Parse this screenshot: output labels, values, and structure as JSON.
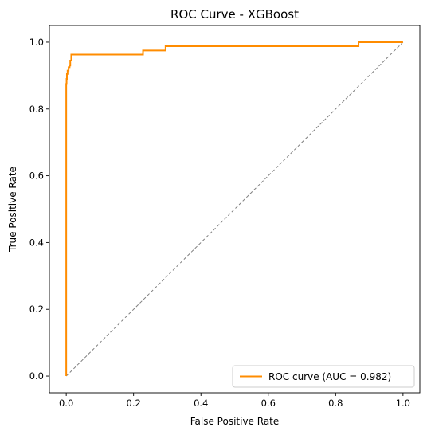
{
  "chart_data": {
    "type": "line",
    "title": "ROC Curve - XGBoost",
    "xlabel": "False Positive Rate",
    "ylabel": "True Positive Rate",
    "xlim": [
      -0.05,
      1.05
    ],
    "ylim": [
      -0.05,
      1.05
    ],
    "xticks": [
      0.0,
      0.2,
      0.4,
      0.6,
      0.8,
      1.0
    ],
    "xtick_labels": [
      "0.0",
      "0.2",
      "0.4",
      "0.6",
      "0.8",
      "1.0"
    ],
    "yticks": [
      0.0,
      0.2,
      0.4,
      0.6,
      0.8,
      1.0
    ],
    "ytick_labels": [
      "0.0",
      "0.2",
      "0.4",
      "0.6",
      "0.8",
      "1.0"
    ],
    "grid": false,
    "legend": {
      "placement": "lower-right",
      "entries": [
        "ROC curve (AUC = 0.982)"
      ]
    },
    "series": [
      {
        "name": "ROC curve (AUC = 0.982)",
        "color": "#ff8c00",
        "style": "solid",
        "x": [
          0.0,
          0.0,
          0.0,
          0.0,
          0.0,
          0.0,
          0.0,
          0.001,
          0.001,
          0.002,
          0.002,
          0.004,
          0.004,
          0.007,
          0.007,
          0.01,
          0.01,
          0.012,
          0.012,
          0.015,
          0.015,
          0.228,
          0.228,
          0.295,
          0.295,
          0.868,
          0.868,
          1.0
        ],
        "y": [
          0.0,
          0.3,
          0.55,
          0.7,
          0.8,
          0.85,
          0.875,
          0.875,
          0.89,
          0.89,
          0.905,
          0.905,
          0.915,
          0.915,
          0.925,
          0.925,
          0.93,
          0.93,
          0.945,
          0.945,
          0.963,
          0.963,
          0.975,
          0.975,
          0.988,
          0.988,
          1.0,
          1.0
        ]
      },
      {
        "color": "#808080",
        "style": "dashed",
        "x": [
          0.0,
          1.0
        ],
        "y": [
          0.0,
          1.0
        ]
      }
    ]
  }
}
